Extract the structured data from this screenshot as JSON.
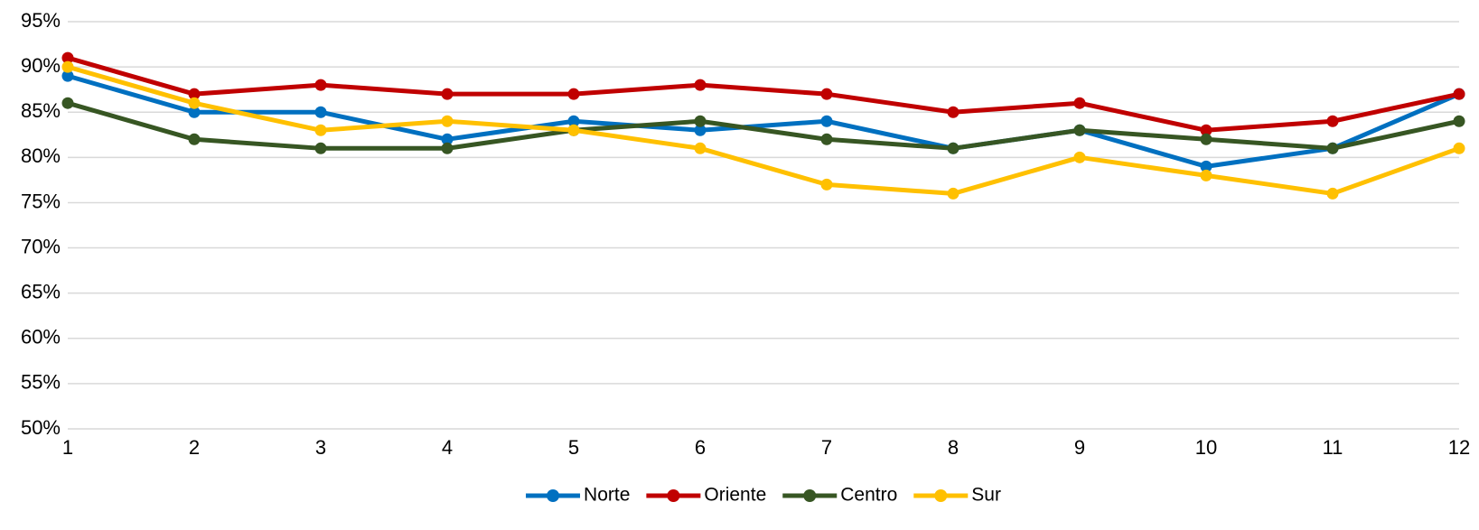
{
  "chart_data": {
    "type": "line",
    "x": [
      1,
      2,
      3,
      4,
      5,
      6,
      7,
      8,
      9,
      10,
      11,
      12
    ],
    "xlim": [
      1,
      12
    ],
    "xticks": [
      1,
      2,
      3,
      4,
      5,
      6,
      7,
      8,
      9,
      10,
      11,
      12
    ],
    "ylim": [
      50,
      95
    ],
    "yticks": [
      {
        "value": 50,
        "label": "50%"
      },
      {
        "value": 55,
        "label": "55%"
      },
      {
        "value": 60,
        "label": "60%"
      },
      {
        "value": 65,
        "label": "65%"
      },
      {
        "value": 70,
        "label": "70%"
      },
      {
        "value": 75,
        "label": "75%"
      },
      {
        "value": 80,
        "label": "80%"
      },
      {
        "value": 85,
        "label": "85%"
      },
      {
        "value": 90,
        "label": "90%"
      },
      {
        "value": 95,
        "label": "95%"
      }
    ],
    "grid": true,
    "legend": "bottom",
    "series": [
      {
        "name": "Norte",
        "color": "#0070c0",
        "values": [
          89,
          85,
          85,
          82,
          84,
          83,
          84,
          81,
          83,
          79,
          81,
          87
        ]
      },
      {
        "name": "Oriente",
        "color": "#c00000",
        "values": [
          91,
          87,
          88,
          87,
          87,
          88,
          87,
          85,
          86,
          83,
          84,
          87
        ]
      },
      {
        "name": "Centro",
        "color": "#375623",
        "values": [
          86,
          82,
          81,
          81,
          83,
          84,
          82,
          81,
          83,
          82,
          81,
          84
        ]
      },
      {
        "name": "Sur",
        "color": "#ffc000",
        "values": [
          90,
          86,
          83,
          84,
          83,
          81,
          77,
          76,
          80,
          78,
          76,
          81
        ]
      }
    ]
  }
}
